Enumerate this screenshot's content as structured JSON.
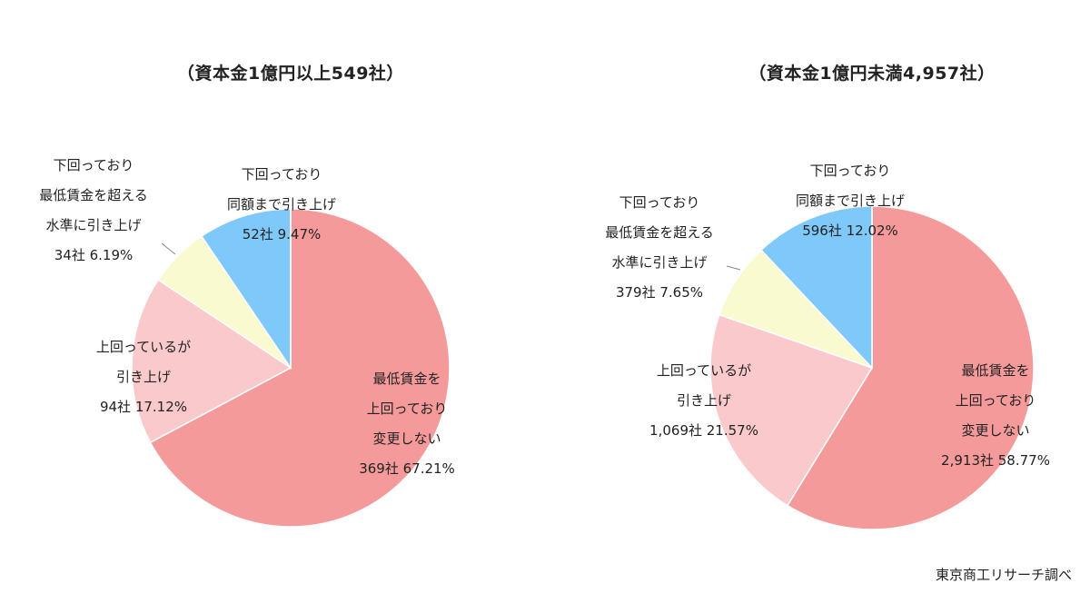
{
  "colors": {
    "slice_0": "#f59a9a",
    "slice_1": "#f9c9cb",
    "slice_2": "#fafad0",
    "slice_3": "#7fc8fa"
  },
  "credit": "東京商工リサーチ調べ",
  "chart_data": [
    {
      "type": "pie",
      "title": "（資本金1億円以上549社）",
      "slices": [
        {
          "label": [
            "最低賃金を",
            "上回っており",
            "変更しない"
          ],
          "value_text": "369社 67.21%",
          "count": 369,
          "percent": 67.21
        },
        {
          "label": [
            "上回っているが",
            "引き上げ"
          ],
          "value_text": "94社 17.12%",
          "count": 94,
          "percent": 17.12
        },
        {
          "label": [
            "下回っており",
            "最低賃金を超える",
            "水準に引き上げ"
          ],
          "value_text": "34社 6.19%",
          "count": 34,
          "percent": 6.19
        },
        {
          "label": [
            "下回っており",
            "同額まで引き上げ"
          ],
          "value_text": "52社 9.47%",
          "count": 52,
          "percent": 9.47
        }
      ]
    },
    {
      "type": "pie",
      "title": "（資本金1億円未満4,957社）",
      "slices": [
        {
          "label": [
            "最低賃金を",
            "上回っており",
            "変更しない"
          ],
          "value_text": "2,913社 58.77%",
          "count": 2913,
          "percent": 58.77
        },
        {
          "label": [
            "上回っているが",
            "引き上げ"
          ],
          "value_text": "1,069社 21.57%",
          "count": 1069,
          "percent": 21.57
        },
        {
          "label": [
            "下回っており",
            "最低賃金を超える",
            "水準に引き上げ"
          ],
          "value_text": "379社 7.65%",
          "count": 379,
          "percent": 7.65
        },
        {
          "label": [
            "下回っており",
            "同額まで引き上げ"
          ],
          "value_text": "596社 12.02%",
          "count": 596,
          "percent": 12.02
        }
      ]
    }
  ]
}
